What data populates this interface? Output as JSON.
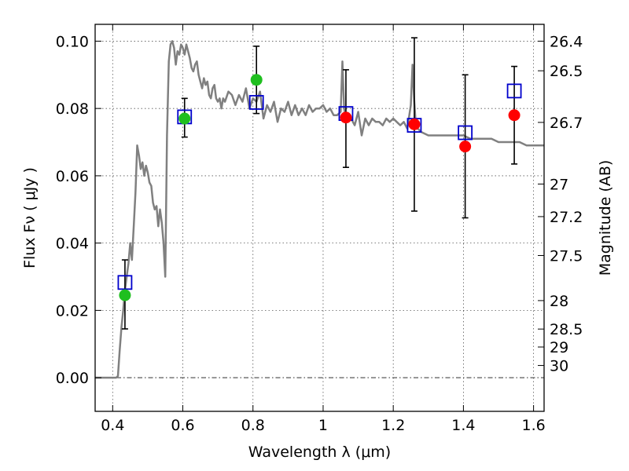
{
  "chart_data": {
    "type": "scatter",
    "xlabel": "Wavelength  λ (μm)",
    "ylabel": "Flux  Fν  ( μJy )",
    "y2label": "Magnitude (AB)",
    "xlim": [
      0.35,
      1.63
    ],
    "ylim": [
      -0.01,
      0.105
    ],
    "x_ticks": [
      0.4,
      0.6,
      0.8,
      1.0,
      1.2,
      1.4,
      1.6
    ],
    "x_tick_labels": [
      "0.4",
      "0.6",
      "0.8",
      "1",
      "1.2",
      "1.4",
      "1.6"
    ],
    "y_ticks": [
      0.0,
      0.02,
      0.04,
      0.06,
      0.08,
      0.1
    ],
    "y_tick_labels": [
      "0.00",
      "0.02",
      "0.04",
      "0.06",
      "0.08",
      "0.10"
    ],
    "mag_ticks": [
      26.4,
      26.5,
      26.7,
      27,
      27.2,
      27.5,
      28,
      28.5,
      29,
      30
    ],
    "mag_tick_labels": [
      "26.4",
      "26.5",
      "26.7",
      "27",
      "27.2",
      "27.5",
      "28",
      "28.5",
      "29",
      "30"
    ],
    "grid": true,
    "colors": {
      "spectrum": "#808080",
      "green_points": "#1fbf1f",
      "red_points": "#ff0000",
      "model_squares": "#0000cc",
      "errorbars": "#000000"
    },
    "spectrum": {
      "x": [
        0.35,
        0.4,
        0.41,
        0.415,
        0.42,
        0.425,
        0.43,
        0.435,
        0.44,
        0.445,
        0.45,
        0.455,
        0.46,
        0.465,
        0.47,
        0.475,
        0.48,
        0.485,
        0.49,
        0.495,
        0.5,
        0.505,
        0.51,
        0.515,
        0.52,
        0.525,
        0.53,
        0.535,
        0.54,
        0.545,
        0.55,
        0.555,
        0.56,
        0.565,
        0.57,
        0.575,
        0.58,
        0.585,
        0.59,
        0.595,
        0.6,
        0.605,
        0.61,
        0.615,
        0.62,
        0.625,
        0.63,
        0.635,
        0.64,
        0.645,
        0.65,
        0.655,
        0.66,
        0.665,
        0.67,
        0.675,
        0.68,
        0.685,
        0.69,
        0.695,
        0.7,
        0.705,
        0.71,
        0.715,
        0.72,
        0.73,
        0.74,
        0.75,
        0.76,
        0.77,
        0.78,
        0.79,
        0.8,
        0.81,
        0.82,
        0.83,
        0.84,
        0.85,
        0.86,
        0.87,
        0.88,
        0.89,
        0.9,
        0.91,
        0.92,
        0.93,
        0.94,
        0.95,
        0.96,
        0.97,
        0.98,
        0.99,
        1.0,
        1.01,
        1.02,
        1.03,
        1.04,
        1.05,
        1.055,
        1.06,
        1.065,
        1.07,
        1.08,
        1.09,
        1.1,
        1.11,
        1.12,
        1.13,
        1.14,
        1.15,
        1.16,
        1.17,
        1.18,
        1.19,
        1.2,
        1.21,
        1.22,
        1.23,
        1.24,
        1.25,
        1.255,
        1.26,
        1.265,
        1.27,
        1.28,
        1.3,
        1.32,
        1.34,
        1.36,
        1.38,
        1.4,
        1.42,
        1.44,
        1.46,
        1.48,
        1.5,
        1.52,
        1.54,
        1.56,
        1.58,
        1.6,
        1.62,
        1.63
      ],
      "y": [
        0.0,
        0.0,
        0.0,
        0.0005,
        0.008,
        0.015,
        0.02,
        0.026,
        0.03,
        0.034,
        0.04,
        0.035,
        0.045,
        0.055,
        0.069,
        0.066,
        0.062,
        0.064,
        0.06,
        0.063,
        0.061,
        0.058,
        0.057,
        0.052,
        0.05,
        0.051,
        0.045,
        0.05,
        0.046,
        0.04,
        0.03,
        0.072,
        0.094,
        0.099,
        0.1,
        0.098,
        0.093,
        0.097,
        0.096,
        0.099,
        0.098,
        0.096,
        0.099,
        0.097,
        0.095,
        0.092,
        0.091,
        0.093,
        0.094,
        0.09,
        0.088,
        0.086,
        0.089,
        0.087,
        0.088,
        0.084,
        0.083,
        0.086,
        0.087,
        0.083,
        0.082,
        0.083,
        0.08,
        0.083,
        0.082,
        0.085,
        0.084,
        0.081,
        0.084,
        0.082,
        0.086,
        0.08,
        0.083,
        0.082,
        0.085,
        0.077,
        0.081,
        0.079,
        0.082,
        0.076,
        0.08,
        0.079,
        0.082,
        0.078,
        0.081,
        0.078,
        0.08,
        0.078,
        0.081,
        0.079,
        0.08,
        0.08,
        0.081,
        0.079,
        0.08,
        0.078,
        0.078,
        0.079,
        0.094,
        0.08,
        0.077,
        0.076,
        0.077,
        0.075,
        0.079,
        0.072,
        0.077,
        0.075,
        0.077,
        0.076,
        0.076,
        0.075,
        0.077,
        0.076,
        0.077,
        0.076,
        0.075,
        0.076,
        0.074,
        0.081,
        0.093,
        0.082,
        0.074,
        0.074,
        0.073,
        0.072,
        0.072,
        0.072,
        0.072,
        0.072,
        0.072,
        0.071,
        0.071,
        0.071,
        0.071,
        0.07,
        0.07,
        0.07,
        0.07,
        0.069,
        0.069,
        0.069,
        0.069
      ]
    },
    "series": [
      {
        "marker": "circle",
        "color": "green",
        "points": [
          {
            "x": 0.435,
            "y": 0.0245,
            "err_low": 0.0145,
            "err_high": 0.035
          },
          {
            "x": 0.605,
            "y": 0.077,
            "err_low": 0.0715,
            "err_high": 0.083
          },
          {
            "x": 0.81,
            "y": 0.0885,
            "err_low": 0.0785,
            "err_high": 0.0985
          }
        ]
      },
      {
        "marker": "circle",
        "color": "red",
        "points": [
          {
            "x": 1.065,
            "y": 0.0773,
            "err_low": 0.0625,
            "err_high": 0.0915
          },
          {
            "x": 1.26,
            "y": 0.0753,
            "err_low": 0.0495,
            "err_high": 0.101
          },
          {
            "x": 1.405,
            "y": 0.0687,
            "err_low": 0.0475,
            "err_high": 0.09
          },
          {
            "x": 1.545,
            "y": 0.078,
            "err_low": 0.0635,
            "err_high": 0.0925
          }
        ]
      },
      {
        "marker": "square",
        "color": "blue",
        "points": [
          {
            "x": 0.435,
            "y": 0.0283
          },
          {
            "x": 0.605,
            "y": 0.0775
          },
          {
            "x": 0.81,
            "y": 0.0818
          },
          {
            "x": 1.065,
            "y": 0.0785
          },
          {
            "x": 1.26,
            "y": 0.075
          },
          {
            "x": 1.405,
            "y": 0.0728
          },
          {
            "x": 1.545,
            "y": 0.0852
          }
        ]
      }
    ]
  }
}
